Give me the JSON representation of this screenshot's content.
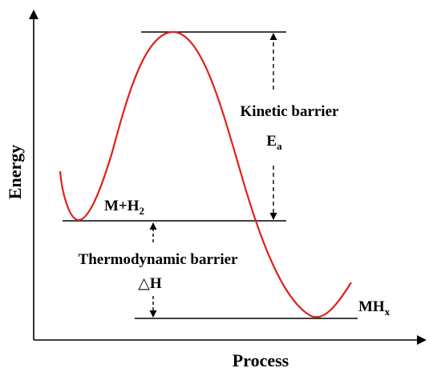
{
  "axes": {
    "y_label": "Energy",
    "x_label": "Process"
  },
  "labels": {
    "kinetic_barrier": "Kinetic barrier",
    "activation_energy_symbol": "E",
    "activation_energy_subscript": "a",
    "reactant_main": "M+H",
    "reactant_subscript": "2",
    "thermodynamic_barrier": "Thermodynamic barrier",
    "enthalpy_symbol": "△H",
    "product_main": "MH",
    "product_subscript": "x"
  },
  "colors": {
    "curve": "#e0201b",
    "lines": "#000000"
  }
}
